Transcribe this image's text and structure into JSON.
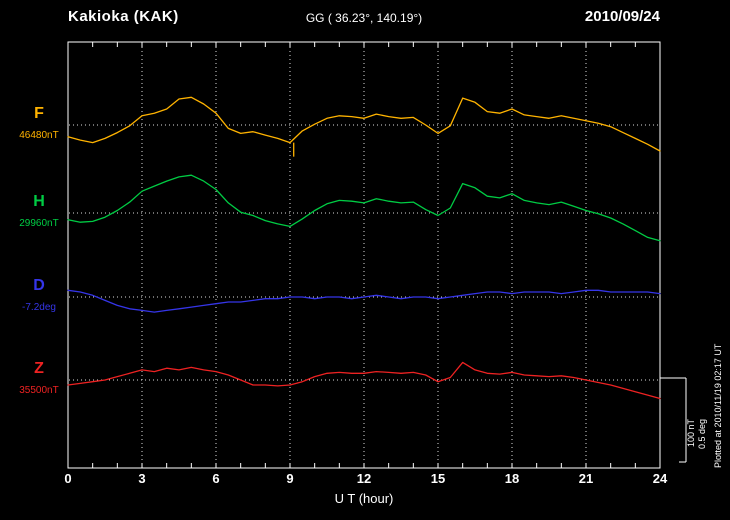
{
  "header": {
    "station": "Kakioka (KAK)",
    "coordinates": "GG ( 36.23°, 140.19°)",
    "date": "2010/09/24"
  },
  "axes": {
    "x_ticks": [
      0,
      3,
      6,
      9,
      12,
      15,
      18,
      21,
      24
    ],
    "x_title": "U T (hour)"
  },
  "scale_bar": {
    "labels": [
      "100 nT",
      "0.5 deg"
    ]
  },
  "footer": {
    "plotted_at": "Plotted at 2010/11/19 02:17 UT"
  },
  "chart_data": {
    "type": "line",
    "title": "Kakioka (KAK) magnetogram 2010/09/24",
    "xlabel": "U T (hour)",
    "x_range": [
      0,
      24
    ],
    "grid": "dotted vertical every 3 h, dotted horizontal baseline per trace",
    "scale": {
      "nT_per_div": 100,
      "deg_per_div": 0.5
    },
    "x_hours": [
      0,
      0.5,
      1,
      1.5,
      2,
      2.5,
      3,
      3.5,
      4,
      4.5,
      5,
      5.5,
      6,
      6.5,
      7,
      7.5,
      8,
      8.5,
      9,
      9.5,
      10,
      10.5,
      11,
      11.5,
      12,
      12.5,
      13,
      13.5,
      14,
      14.5,
      15,
      15.5,
      16,
      16.5,
      17,
      17.5,
      18,
      18.5,
      19,
      19.5,
      20,
      20.5,
      21,
      21.5,
      22,
      22.5,
      23,
      23.5,
      24
    ],
    "artifact": {
      "trace": "F",
      "hour": 9.15,
      "note": "downward spike mark"
    },
    "series": [
      {
        "name": "F",
        "unit": "nT",
        "baseline": 46480,
        "label_value": "46480nT",
        "color": "#FFB300",
        "values": [
          46466,
          46462,
          46459,
          46464,
          46471,
          46479,
          46491,
          46494,
          46499,
          46511,
          46513,
          46505,
          46494,
          46476,
          46470,
          46472,
          46468,
          46464,
          46459,
          46473,
          46481,
          46488,
          46491,
          46490,
          46488,
          46493,
          46490,
          46488,
          46489,
          46480,
          46470,
          46479,
          46512,
          46507,
          46496,
          46494,
          46499,
          46492,
          46490,
          46488,
          46491,
          46488,
          46485,
          46482,
          46478,
          46471,
          46464,
          46457,
          46449
        ]
      },
      {
        "name": "H",
        "unit": "nT",
        "baseline": 29960,
        "label_value": "29960nT",
        "color": "#00CC44",
        "values": [
          29952,
          29949,
          29950,
          29955,
          29963,
          29973,
          29986,
          29992,
          29998,
          30003,
          30005,
          29998,
          29988,
          29972,
          29961,
          29957,
          29951,
          29947,
          29944,
          29953,
          29963,
          29971,
          29975,
          29974,
          29972,
          29977,
          29974,
          29972,
          29973,
          29964,
          29957,
          29966,
          29995,
          29990,
          29980,
          29978,
          29983,
          29975,
          29972,
          29970,
          29973,
          29968,
          29963,
          29959,
          29954,
          29947,
          29939,
          29931,
          29927
        ]
      },
      {
        "name": "D",
        "unit": "deg",
        "baseline": -7.2,
        "label_value": "-7.2deg",
        "color": "#3535E8",
        "values": [
          -7.16,
          -7.17,
          -7.19,
          -7.22,
          -7.25,
          -7.27,
          -7.28,
          -7.29,
          -7.28,
          -7.27,
          -7.26,
          -7.25,
          -7.24,
          -7.23,
          -7.23,
          -7.22,
          -7.21,
          -7.21,
          -7.2,
          -7.2,
          -7.21,
          -7.2,
          -7.2,
          -7.21,
          -7.2,
          -7.19,
          -7.2,
          -7.21,
          -7.2,
          -7.2,
          -7.21,
          -7.2,
          -7.19,
          -7.18,
          -7.17,
          -7.17,
          -7.18,
          -7.17,
          -7.17,
          -7.17,
          -7.18,
          -7.17,
          -7.16,
          -7.16,
          -7.17,
          -7.17,
          -7.17,
          -7.17,
          -7.18
        ]
      },
      {
        "name": "Z",
        "unit": "nT",
        "baseline": 35500,
        "label_value": "35500nT",
        "color": "#EE2222",
        "values": [
          35494,
          35496,
          35498,
          35500,
          35504,
          35508,
          35512,
          35510,
          35514,
          35512,
          35515,
          35512,
          35510,
          35506,
          35500,
          35494,
          35494,
          35493,
          35494,
          35498,
          35504,
          35508,
          35509,
          35508,
          35508,
          35510,
          35509,
          35508,
          35509,
          35506,
          35498,
          35503,
          35521,
          35512,
          35508,
          35507,
          35509,
          35506,
          35505,
          35504,
          35505,
          35503,
          35500,
          35497,
          35494,
          35490,
          35486,
          35482,
          35478
        ]
      }
    ]
  }
}
